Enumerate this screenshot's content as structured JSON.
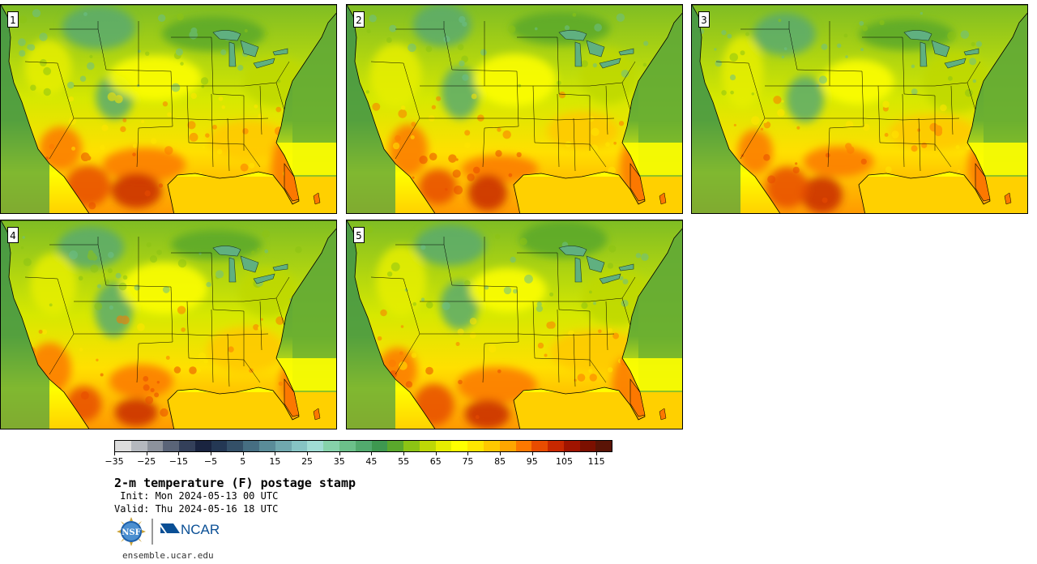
{
  "panels": [
    {
      "label": "1",
      "seed": 1,
      "heat": 0.55
    },
    {
      "label": "2",
      "seed": 2,
      "heat": 0.45
    },
    {
      "label": "3",
      "seed": 3,
      "heat": 0.5
    },
    {
      "label": "4",
      "seed": 4,
      "heat": 0.5
    },
    {
      "label": "5",
      "seed": 5,
      "heat": 0.42
    }
  ],
  "colorbar": {
    "colors": [
      "#dcdcdc",
      "#b4b8be",
      "#8c929c",
      "#5a6478",
      "#34405a",
      "#1a2440",
      "#243854",
      "#345068",
      "#466e82",
      "#5a8c98",
      "#70a8ae",
      "#86c4c4",
      "#a0dcd4",
      "#86d2aa",
      "#6cc08a",
      "#52aa6e",
      "#3e9850",
      "#5aa82c",
      "#8cc414",
      "#bed806",
      "#e6ee00",
      "#ffff00",
      "#ffe600",
      "#ffc800",
      "#ffa600",
      "#fc7800",
      "#e84c00",
      "#c82800",
      "#a01400",
      "#7c1000",
      "#5a1406"
    ],
    "min": -35,
    "max": 120,
    "tick_labels": [
      "−35",
      "−25",
      "−15",
      "−5",
      "5",
      "15",
      "25",
      "35",
      "45",
      "55",
      "65",
      "75",
      "85",
      "95",
      "105",
      "115"
    ]
  },
  "title": "2-m temperature (F) postage stamp",
  "init": " Init: Mon 2024-05-13 00 UTC",
  "valid": "Valid: Thu 2024-05-16 18 UTC",
  "logos": {
    "nsf": "NSF",
    "ncar": "NCAR"
  },
  "site": "ensemble.ucar.edu",
  "map_colors": {
    "ocean_far": "#4a9a44",
    "ocean_mid": "#6cb030",
    "gulf": "#ffd000",
    "atlantic_warm": "#ffff00",
    "great_lakes": "#60b080",
    "boundary": "#000000"
  }
}
